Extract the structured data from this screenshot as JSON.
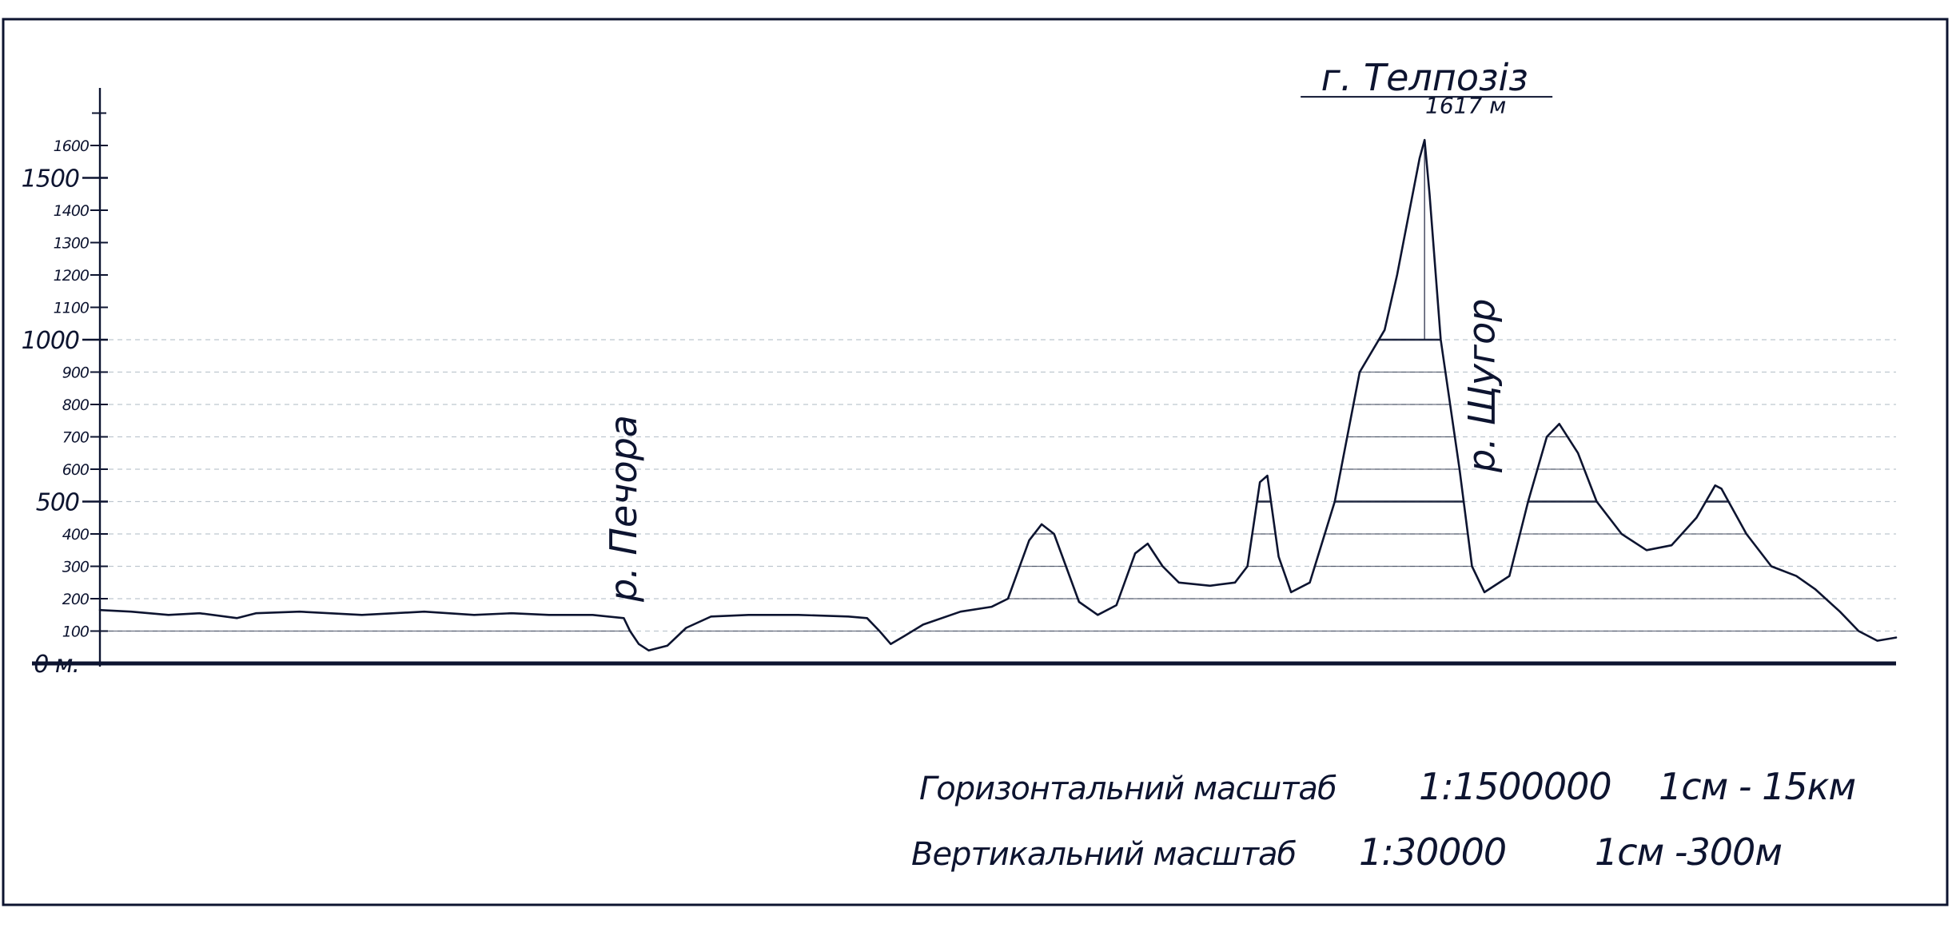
{
  "chart_data": {
    "type": "area",
    "title": "",
    "xlabel": "",
    "ylabel": "",
    "ylim": [
      0,
      1800
    ],
    "grid": true,
    "y_ticks": [
      {
        "value": 0,
        "label": "0 м."
      },
      {
        "value": 100,
        "label": "100"
      },
      {
        "value": 200,
        "label": "200"
      },
      {
        "value": 300,
        "label": "300"
      },
      {
        "value": 400,
        "label": "400"
      },
      {
        "value": 500,
        "label": "500"
      },
      {
        "value": 600,
        "label": "600"
      },
      {
        "value": 700,
        "label": "700"
      },
      {
        "value": 800,
        "label": "800"
      },
      {
        "value": 900,
        "label": "900"
      },
      {
        "value": 1000,
        "label": "1000"
      },
      {
        "value": 1100,
        "label": "1100"
      },
      {
        "value": 1200,
        "label": "1200"
      },
      {
        "value": 1300,
        "label": "1300"
      },
      {
        "value": 1400,
        "label": "1400"
      },
      {
        "value": 1500,
        "label": "1500"
      },
      {
        "value": 1600,
        "label": "1600"
      }
    ],
    "major_ticks": [
      0,
      500,
      1000,
      1500
    ],
    "gridlines": [
      100,
      200,
      300,
      400,
      500,
      600,
      700,
      800,
      900,
      1000
    ],
    "horizontal_scale_km_per_cm": 15,
    "horizontal_extent_km": 1440,
    "series": [
      {
        "points": [
          [
            0,
            165
          ],
          [
            25,
            160
          ],
          [
            55,
            150
          ],
          [
            80,
            155
          ],
          [
            110,
            140
          ],
          [
            125,
            155
          ],
          [
            160,
            160
          ],
          [
            210,
            150
          ],
          [
            260,
            160
          ],
          [
            300,
            150
          ],
          [
            330,
            155
          ],
          [
            360,
            150
          ],
          [
            395,
            150
          ],
          [
            420,
            140
          ],
          [
            425,
            100
          ],
          [
            432,
            60
          ],
          [
            440,
            40
          ],
          [
            455,
            55
          ],
          [
            470,
            110
          ],
          [
            490,
            145
          ],
          [
            520,
            150
          ],
          [
            560,
            150
          ],
          [
            600,
            145
          ],
          [
            615,
            140
          ],
          [
            625,
            100
          ],
          [
            634,
            60
          ],
          [
            645,
            85
          ],
          [
            660,
            120
          ],
          [
            690,
            160
          ],
          [
            715,
            175
          ],
          [
            728,
            200
          ],
          [
            745,
            380
          ],
          [
            755,
            430
          ],
          [
            765,
            400
          ],
          [
            785,
            190
          ],
          [
            800,
            150
          ],
          [
            815,
            180
          ],
          [
            830,
            340
          ],
          [
            840,
            370
          ],
          [
            852,
            300
          ],
          [
            865,
            250
          ],
          [
            890,
            240
          ],
          [
            910,
            250
          ],
          [
            920,
            300
          ],
          [
            930,
            560
          ],
          [
            936,
            580
          ],
          [
            945,
            330
          ],
          [
            955,
            220
          ],
          [
            970,
            250
          ],
          [
            990,
            500
          ],
          [
            1010,
            900
          ],
          [
            1030,
            1030
          ],
          [
            1040,
            1200
          ],
          [
            1050,
            1400
          ],
          [
            1058,
            1560
          ],
          [
            1062,
            1617
          ],
          [
            1066,
            1450
          ],
          [
            1075,
            1000
          ],
          [
            1090,
            600
          ],
          [
            1100,
            300
          ],
          [
            1110,
            220
          ],
          [
            1130,
            270
          ],
          [
            1145,
            500
          ],
          [
            1160,
            700
          ],
          [
            1170,
            740
          ],
          [
            1185,
            650
          ],
          [
            1200,
            500
          ],
          [
            1220,
            400
          ],
          [
            1240,
            350
          ],
          [
            1260,
            365
          ],
          [
            1280,
            450
          ],
          [
            1295,
            550
          ],
          [
            1300,
            540
          ],
          [
            1320,
            400
          ],
          [
            1340,
            300
          ],
          [
            1360,
            270
          ],
          [
            1375,
            230
          ],
          [
            1395,
            160
          ],
          [
            1410,
            100
          ],
          [
            1425,
            70
          ],
          [
            1440,
            80
          ]
        ]
      }
    ],
    "annotations": [
      {
        "text": "р. Печора",
        "x": 430,
        "y": 190,
        "orientation": "vertical"
      },
      {
        "text": "р. Щугор",
        "x": 1118,
        "y": 590,
        "orientation": "vertical"
      },
      {
        "text": "г. Телпозіз",
        "x": 1062,
        "y": 1770,
        "underline": true
      },
      {
        "text": "1617 м",
        "x": 1095,
        "y": 1700
      }
    ],
    "scale_notes": {
      "horizontal": {
        "caption": "Горизонтальний масштаб",
        "ratio": "1:1500000",
        "unit": "1см - 15км"
      },
      "vertical": {
        "caption": "Вертикальний масштаб",
        "ratio": "1:30000",
        "unit": "1см -300м"
      }
    }
  },
  "colors": {
    "ink": "#0d1430",
    "grid": "#8a9aa8",
    "background": "#ffffff"
  }
}
